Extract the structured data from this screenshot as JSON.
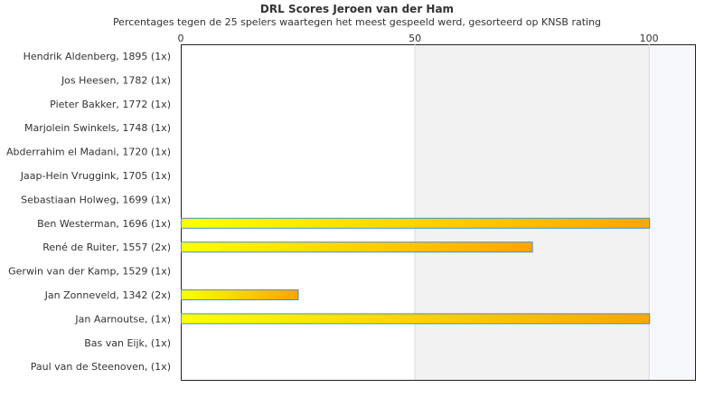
{
  "chart_data": {
    "type": "bar",
    "orientation": "horizontal",
    "title": "DRL Scores Jeroen van der Ham",
    "subtitle": "Percentages tegen de 25 spelers waartegen het meest gespeeld werd, gesorteerd op KNSB rating",
    "categories": [
      "Hendrik Aldenberg, 1895 (1x)",
      "Jos Heesen, 1782 (1x)",
      "Pieter Bakker, 1772 (1x)",
      "Marjolein Swinkels, 1748 (1x)",
      "Abderrahim el Madani, 1720 (1x)",
      "Jaap-Hein Vruggink, 1705 (1x)",
      "Sebastiaan Holweg, 1699 (1x)",
      "Ben Westerman, 1696 (1x)",
      "René de Ruiter, 1557 (2x)",
      "Gerwin van der Kamp, 1529 (1x)",
      "Jan Zonneveld, 1342 (2x)",
      "Jan Aarnoutse,  (1x)",
      "Bas van Eijk,  (1x)",
      "Paul van de Steenoven,  (1x)"
    ],
    "values": [
      0,
      0,
      0,
      0,
      0,
      0,
      0,
      100,
      75,
      0,
      25,
      100,
      0,
      0
    ],
    "xlim": [
      0,
      110
    ],
    "xticks": [
      0,
      50,
      100
    ],
    "xtick_labels": [
      "0",
      "50",
      "100"
    ],
    "xaxis_position": "top",
    "grid": false,
    "colors": {
      "bar_start": "#ffff00",
      "bar_end": "#ffa500",
      "bar_border": "#4a90c8",
      "band_mid": "#f2f2f2",
      "band_high": "#f6f8fc"
    }
  }
}
